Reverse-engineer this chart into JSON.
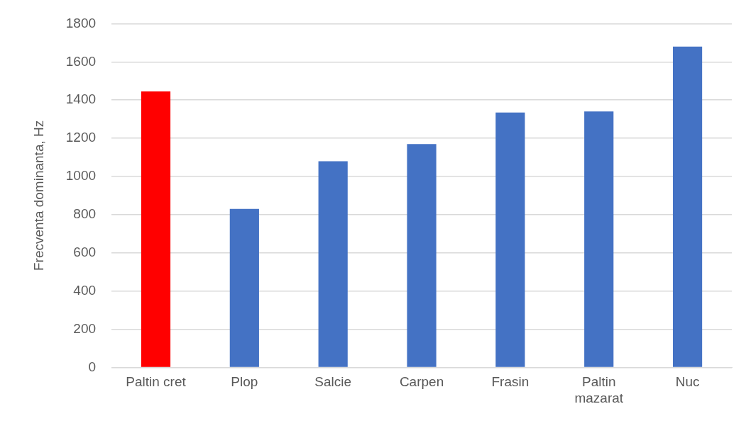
{
  "chart_data": {
    "type": "bar",
    "ylabel": "Frecventa dominanta, Hz",
    "categories": [
      "Paltin cret",
      "Plop",
      "Salcie",
      "Carpen",
      "Frasin",
      "Paltin mazarat",
      "Nuc"
    ],
    "values": [
      1445,
      830,
      1080,
      1170,
      1335,
      1340,
      1680
    ],
    "colors": [
      "#ff0000",
      "#4472c4",
      "#4472c4",
      "#4472c4",
      "#4472c4",
      "#4472c4",
      "#4472c4"
    ],
    "ylim": [
      0,
      1800
    ],
    "yticks": [
      0,
      200,
      400,
      600,
      800,
      1000,
      1200,
      1400,
      1600,
      1800
    ],
    "grid": "y",
    "legend": false
  }
}
